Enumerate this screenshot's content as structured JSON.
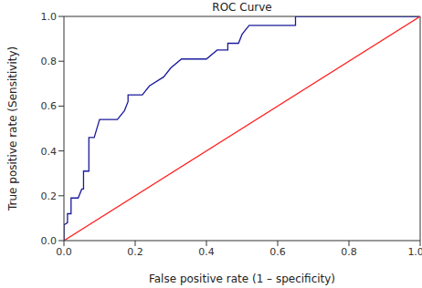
{
  "chart_data": {
    "type": "line",
    "title": "ROC Curve",
    "x_label": "False positive rate (1 – specificity)",
    "y_label": "True positive rate (Sensitivity)",
    "xlim": [
      0,
      1
    ],
    "ylim": [
      0,
      1
    ],
    "xticks": [
      {
        "value": 0,
        "label": "0.0"
      },
      {
        "value": 0.2,
        "label": "0.2"
      },
      {
        "value": 0.4,
        "label": "0.4"
      },
      {
        "value": 0.6,
        "label": "0.6"
      },
      {
        "value": 0.8,
        "label": "0.8"
      },
      {
        "value": 1,
        "label": "1.0"
      }
    ],
    "yticks": [
      {
        "value": 0,
        "label": "0.0"
      },
      {
        "value": 0.2,
        "label": "0.2"
      },
      {
        "value": 0.4,
        "label": "0.4"
      },
      {
        "value": 0.6,
        "label": "0.6"
      },
      {
        "value": 0.8,
        "label": "0.8"
      },
      {
        "value": 1,
        "label": "1.0"
      }
    ],
    "grid": false,
    "series": [
      {
        "color": "#1a1a9c",
        "x": [
          0,
          0,
          0.01,
          0.01,
          0.02,
          0.02,
          0.04,
          0.05,
          0.055,
          0.055,
          0.07,
          0.07,
          0.085,
          0.1,
          0.15,
          0.17,
          0.18,
          0.18,
          0.22,
          0.24,
          0.28,
          0.3,
          0.33,
          0.4,
          0.43,
          0.46,
          0.46,
          0.49,
          0.5,
          0.52,
          0.65,
          0.65,
          1
        ],
        "values": [
          0,
          0.07,
          0.08,
          0.12,
          0.12,
          0.19,
          0.19,
          0.23,
          0.23,
          0.31,
          0.31,
          0.46,
          0.46,
          0.54,
          0.54,
          0.58,
          0.62,
          0.65,
          0.65,
          0.69,
          0.73,
          0.77,
          0.81,
          0.81,
          0.85,
          0.85,
          0.88,
          0.88,
          0.92,
          0.96,
          0.96,
          1,
          1
        ]
      },
      {
        "color": "#ff2020",
        "x": [
          0,
          1
        ],
        "values": [
          0,
          1
        ]
      }
    ]
  }
}
